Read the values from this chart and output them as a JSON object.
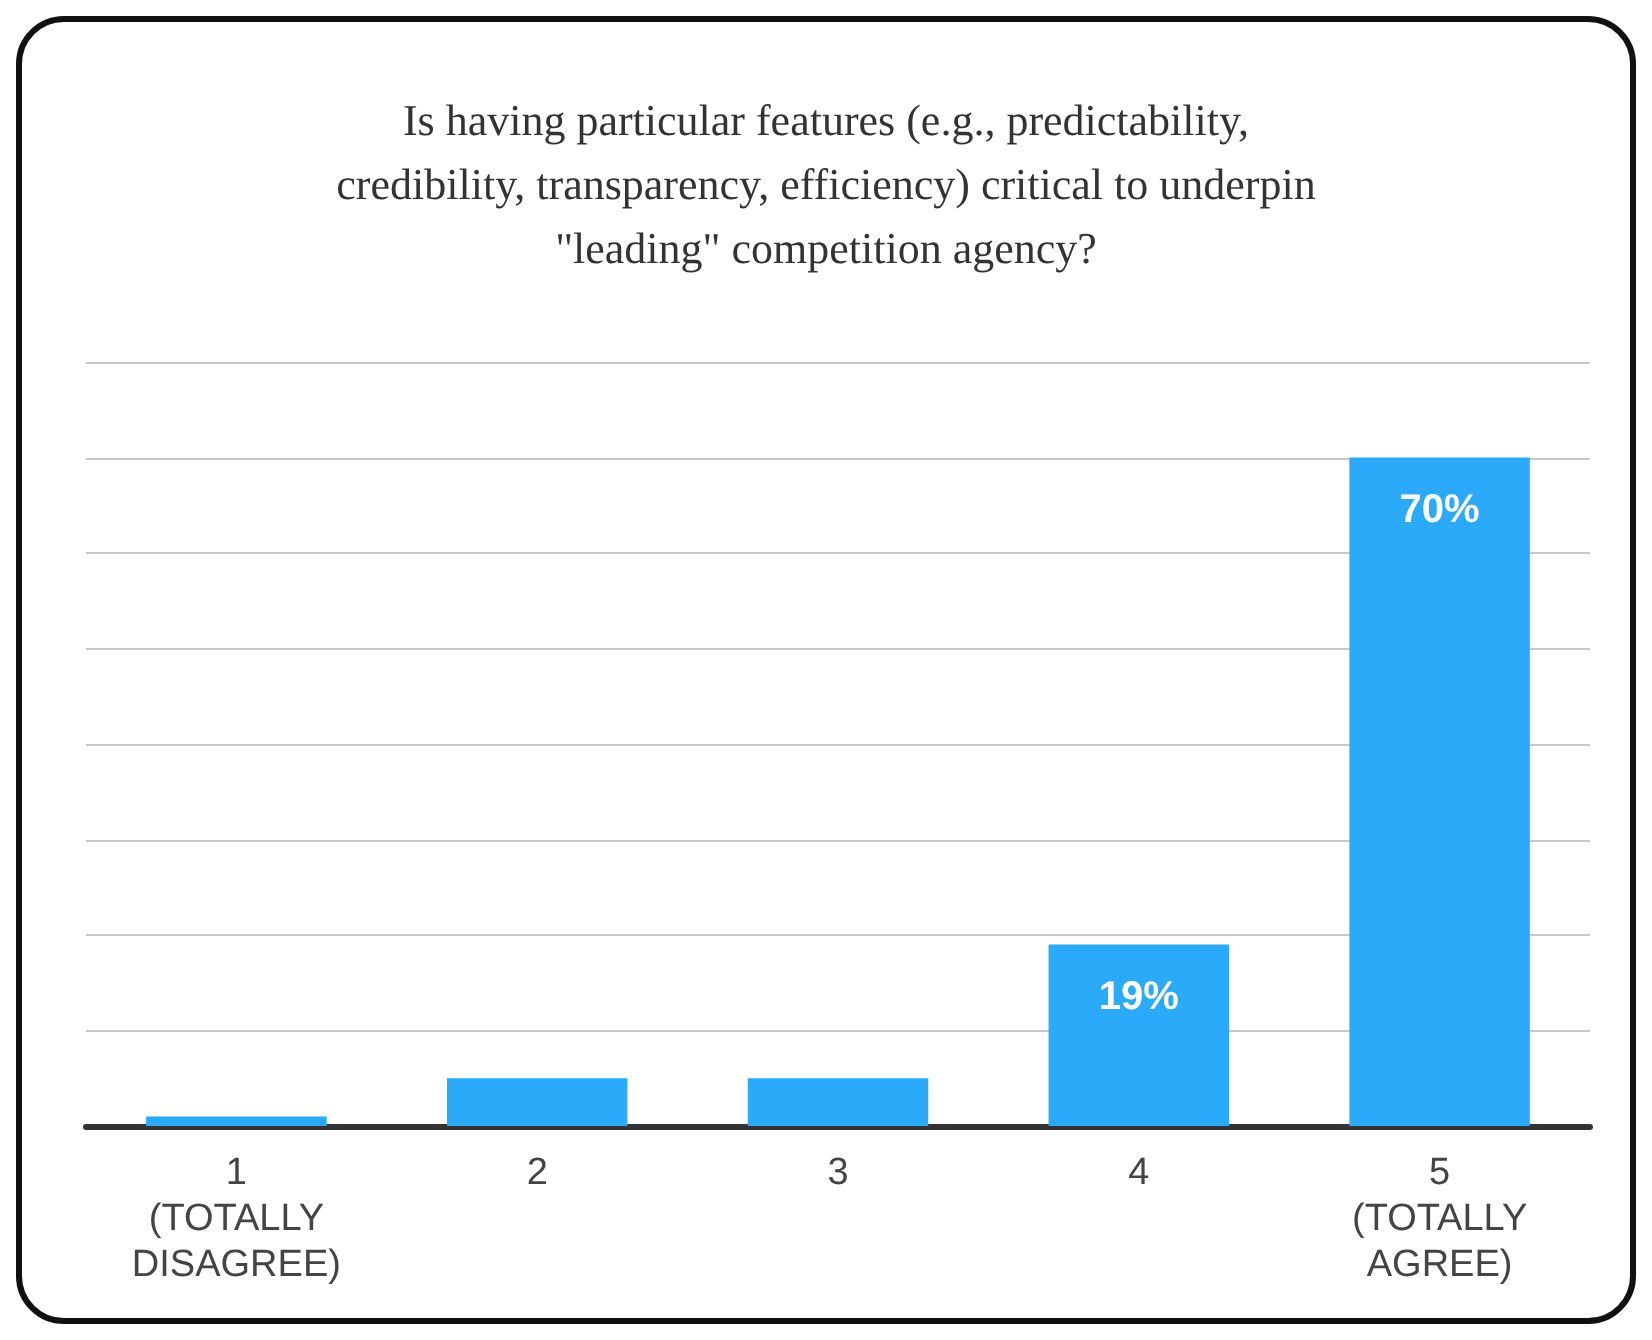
{
  "chart_data": {
    "type": "bar",
    "title": "Is having particular features (e.g., predictability,\ncredibility, transparency, efficiency) critical to underpin\n\"leading\" competition agency?",
    "categories": [
      "1\n(TOTALLY\nDISAGREE)",
      "2",
      "3",
      "4",
      "5\n(TOTALLY\nAGREE)"
    ],
    "values": [
      1,
      5,
      5,
      19,
      70
    ],
    "value_labels": [
      null,
      null,
      null,
      "19%",
      "70%"
    ],
    "color": "#2aaaf8",
    "ylim": [
      0,
      80
    ],
    "yticks": [
      {
        "value": 0,
        "label": null
      },
      {
        "value": 10,
        "label": null
      },
      {
        "value": 20,
        "label": null
      },
      {
        "value": 30,
        "label": null
      },
      {
        "value": 40,
        "label": null
      },
      {
        "value": 50,
        "label": null
      },
      {
        "value": 60,
        "label": null
      },
      {
        "value": 70,
        "label": null
      },
      {
        "value": 80,
        "label": null
      }
    ],
    "tick_labels": "x",
    "grid": "y"
  }
}
